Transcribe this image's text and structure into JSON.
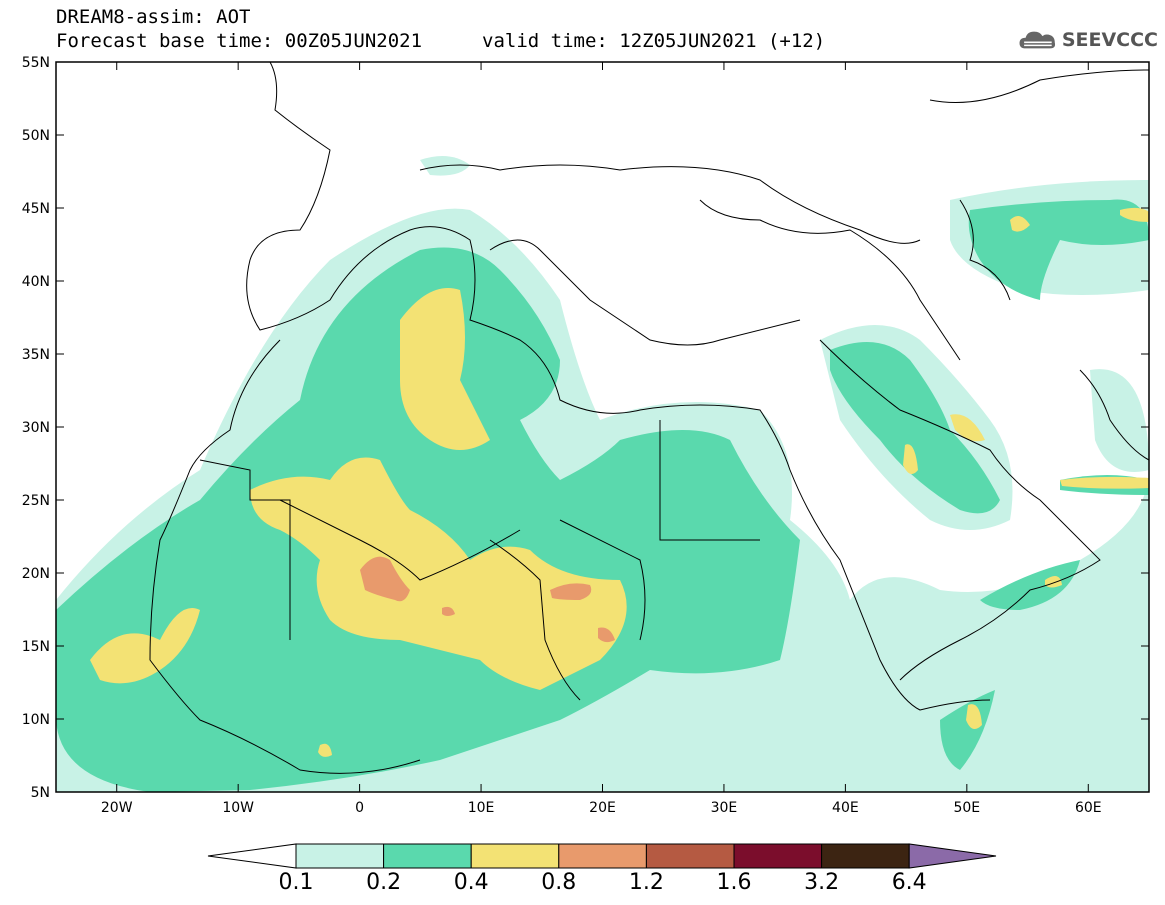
{
  "header": {
    "line1": "DREAM8-assim: AOT",
    "line2": "Forecast base time: 00Z05JUN2021",
    "line2b": "valid time: 12Z05JUN2021 (+12)"
  },
  "logo": {
    "text": "SEEVCCC",
    "icon": "cloud-icon"
  },
  "map": {
    "lat_labels": [
      "55N",
      "50N",
      "45N",
      "40N",
      "35N",
      "30N",
      "25N",
      "20N",
      "15N",
      "10N",
      "5N"
    ],
    "lon_labels": [
      "20W",
      "10W",
      "0",
      "10E",
      "20E",
      "30E",
      "40E",
      "50E",
      "60E"
    ],
    "lat_range": [
      5,
      55
    ],
    "lon_range": [
      -25,
      65
    ]
  },
  "colorbar": {
    "labels": [
      "0.1",
      "0.2",
      "0.4",
      "0.8",
      "1.2",
      "1.6",
      "3.2",
      "6.4"
    ],
    "colors": [
      "#c8f2e6",
      "#5ad9ad",
      "#f3e274",
      "#e89a6c",
      "#b55a42",
      "#7b0d2c",
      "#3c2412",
      "#8b6aa8"
    ],
    "under_color": "#ffffff"
  }
}
